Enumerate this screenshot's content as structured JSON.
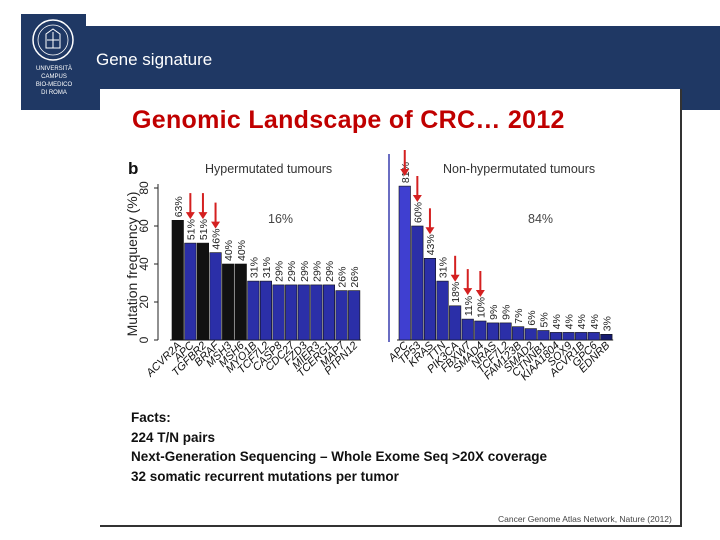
{
  "header": {
    "slide_title": "Gene signature",
    "logo_lines": [
      "UNIVERSITÀ",
      "CAMPUS",
      "BIO-MEDICO",
      "DI ROMA"
    ]
  },
  "figure": {
    "title": "Genomic Landscape of CRC… 2012",
    "citation": "Cancer Genome Atlas Network, Nature (2012)"
  },
  "facts": {
    "heading": "Facts:",
    "lines": [
      "224 T/N pairs",
      "Next-Generation Sequencing – Whole Exome Seq >20X coverage",
      "32 somatic recurrent mutations per tumor"
    ]
  },
  "chart_data": {
    "type": "bar",
    "panel_label": "b",
    "ylabel": "Mutation frequency (%)",
    "ylim": [
      0,
      80
    ],
    "yticks": [
      0,
      20,
      40,
      60,
      80
    ],
    "colors": {
      "red_arrow": "#d42020",
      "black_bar": "#111111",
      "blue_bar": "#2b2fa8",
      "highlight_bar": "#3f3fd0",
      "dark_blue_bar": "#151a6e"
    },
    "groups": [
      {
        "name": "Hypermutated tumours",
        "share_label": "16%",
        "bars": [
          {
            "gene": "ACVR2A",
            "value": 63,
            "label": "63%",
            "color": "black",
            "arrow": false
          },
          {
            "gene": "APC",
            "value": 51,
            "label": "51%",
            "color": "blue",
            "arrow": true
          },
          {
            "gene": "TGFBR2",
            "value": 51,
            "label": "51%",
            "color": "black",
            "arrow": true
          },
          {
            "gene": "BRAF",
            "value": 46,
            "label": "46%",
            "color": "blue",
            "arrow": true
          },
          {
            "gene": "MSH3",
            "value": 40,
            "label": "40%",
            "color": "black",
            "arrow": false
          },
          {
            "gene": "MSH6",
            "value": 40,
            "label": "40%",
            "color": "black",
            "arrow": false
          },
          {
            "gene": "MYO1B",
            "value": 31,
            "label": "31%",
            "color": "blue",
            "arrow": false
          },
          {
            "gene": "TCF7L2",
            "value": 31,
            "label": "31%",
            "color": "blue",
            "arrow": false
          },
          {
            "gene": "CASP8",
            "value": 29,
            "label": "29%",
            "color": "blue",
            "arrow": false
          },
          {
            "gene": "CDC27",
            "value": 29,
            "label": "29%",
            "color": "blue",
            "arrow": false
          },
          {
            "gene": "FZD3",
            "value": 29,
            "label": "29%",
            "color": "blue",
            "arrow": false
          },
          {
            "gene": "MIER3",
            "value": 29,
            "label": "29%",
            "color": "blue",
            "arrow": false
          },
          {
            "gene": "TCERG1",
            "value": 29,
            "label": "29%",
            "color": "blue",
            "arrow": false
          },
          {
            "gene": "MAP7",
            "value": 26,
            "label": "26%",
            "color": "blue",
            "arrow": false
          },
          {
            "gene": "PTPN12",
            "value": 26,
            "label": "26%",
            "color": "blue",
            "arrow": false
          }
        ]
      },
      {
        "name": "Non-hypermutated tumours",
        "share_label": "84%",
        "bars": [
          {
            "gene": "APC",
            "value": 81,
            "label": "81%",
            "color": "highlight",
            "arrow": true
          },
          {
            "gene": "TP53",
            "value": 60,
            "label": "60%",
            "color": "blue",
            "arrow": true
          },
          {
            "gene": "KRAS",
            "value": 43,
            "label": "43%",
            "color": "blue",
            "arrow": true
          },
          {
            "gene": "TTN",
            "value": 31,
            "label": "31%",
            "color": "blue",
            "arrow": false
          },
          {
            "gene": "PIK3CA",
            "value": 18,
            "label": "18%",
            "color": "blue",
            "arrow": true
          },
          {
            "gene": "FBXW7",
            "value": 11,
            "label": "11%",
            "color": "blue",
            "arrow": true
          },
          {
            "gene": "SMAD4",
            "value": 10,
            "label": "10%",
            "color": "blue",
            "arrow": true
          },
          {
            "gene": "NRAS",
            "value": 9,
            "label": "9%",
            "color": "blue",
            "arrow": false
          },
          {
            "gene": "TCF7L2",
            "value": 9,
            "label": "9%",
            "color": "blue",
            "arrow": false
          },
          {
            "gene": "FAM123B",
            "value": 7,
            "label": "7%",
            "color": "blue",
            "arrow": false
          },
          {
            "gene": "SMAD2",
            "value": 6,
            "label": "6%",
            "color": "blue",
            "arrow": false
          },
          {
            "gene": "CTNNB1",
            "value": 5,
            "label": "5%",
            "color": "blue",
            "arrow": false
          },
          {
            "gene": "KIAA1804",
            "value": 4,
            "label": "4%",
            "color": "blue",
            "arrow": false
          },
          {
            "gene": "SOX9",
            "value": 4,
            "label": "4%",
            "color": "blue",
            "arrow": false
          },
          {
            "gene": "ACVR1B",
            "value": 4,
            "label": "4%",
            "color": "blue",
            "arrow": false
          },
          {
            "gene": "GPC6",
            "value": 4,
            "label": "4%",
            "color": "blue",
            "arrow": false
          },
          {
            "gene": "EDNRB",
            "value": 3,
            "label": "3%",
            "color": "dark",
            "arrow": false
          }
        ]
      }
    ]
  }
}
